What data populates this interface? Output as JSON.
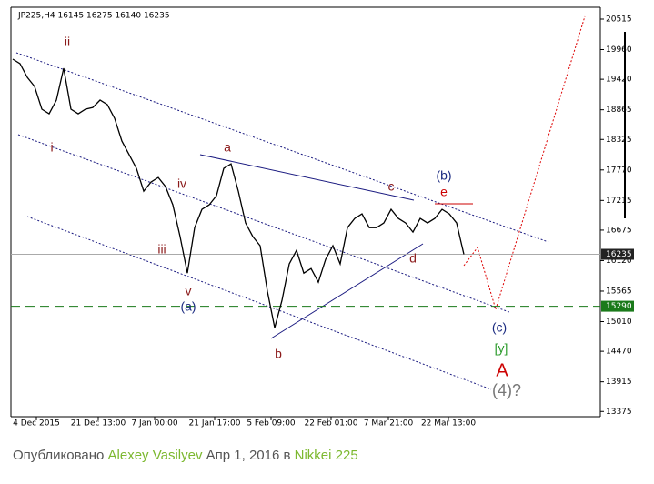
{
  "chart_data": {
    "type": "line",
    "title": "JP225,H4  16145 16275 16140 16235",
    "values": [
      19786,
      19703,
      19455,
      19289,
      18875,
      18792,
      19041,
      19620,
      18875,
      18792,
      18875,
      18908,
      19041,
      18958,
      18709,
      18295,
      18047,
      17798,
      17384,
      17550,
      17633,
      17467,
      17136,
      16556,
      15893,
      16721,
      17053,
      17136,
      17301,
      17798,
      17881,
      17384,
      16804,
      16556,
      16390,
      15562,
      14899,
      15396,
      16059,
      16307,
      15893,
      15976,
      15727,
      16142,
      16390,
      16059,
      16721,
      16887,
      16970,
      16721,
      16721,
      16804,
      17053,
      16887,
      16804,
      16639,
      16887,
      16804,
      16887,
      17053,
      16970,
      16804,
      16235
    ],
    "color": "#000000",
    "xlim": [
      -0.25,
      80.75
    ],
    "xticks": [
      {
        "value": 3.25,
        "label": "4 Dec 2015"
      },
      {
        "value": 11.75,
        "label": "21 Dec 13:00"
      },
      {
        "value": 19.5,
        "label": "7 Jan 00:00"
      },
      {
        "value": 27.75,
        "label": "21 Jan 17:00"
      },
      {
        "value": 35.5,
        "label": "5 Feb 09:00"
      },
      {
        "value": 43.75,
        "label": "22 Feb 01:00"
      },
      {
        "value": 51.625,
        "label": "7 Mar 21:00"
      },
      {
        "value": 59.875,
        "label": "22 Mar 13:00"
      }
    ],
    "ylim": [
      13280,
      20730
    ],
    "yticks": [
      20515,
      19960,
      19420,
      18865,
      18325,
      17770,
      17215,
      16675,
      16120,
      15565,
      15010,
      14470,
      13915,
      13375
    ],
    "levels": [
      {
        "value": 15290,
        "color": "#1a7a1a"
      }
    ],
    "annotations": [
      "ii",
      "i",
      "iv",
      "iii",
      "v",
      "(a)",
      "a",
      "b",
      "c",
      "d",
      "(b)",
      "e",
      "(c)",
      "[y]",
      "A",
      "(4)?"
    ]
  },
  "footer": {
    "published": "Опубликовано",
    "author": "Alexey Vasilyev",
    "date": "Апр 1, 2016",
    "in": "в",
    "symbol": "Nikkei 225"
  }
}
